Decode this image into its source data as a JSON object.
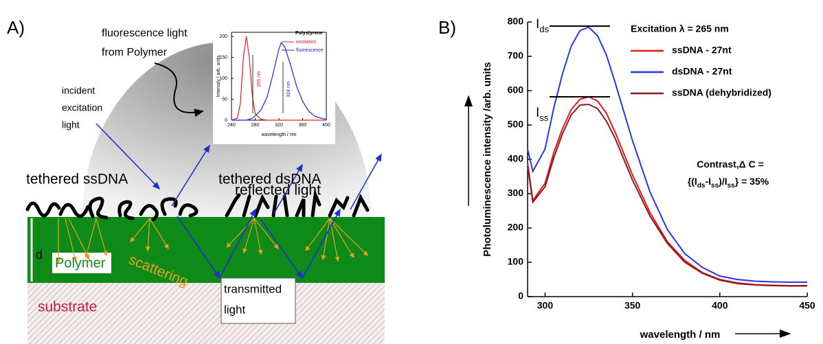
{
  "panel_a": {
    "label": "A)",
    "fluorescence_label": [
      "fluorescence light",
      "from Polymer"
    ],
    "incident_label": [
      "incident",
      "excitation",
      "light"
    ],
    "reflected_label": "reflected  light",
    "ssdna_label": "tethered ssDNA",
    "dsdna_label": "tethered  dsDNA",
    "thickness_label": "d",
    "polymer_label": "Polymer",
    "scattering_label": "scattering",
    "substrate_label": "substrate",
    "transmitted_label": [
      "transmitted",
      "light"
    ]
  },
  "panel_b_label": "B)",
  "chart_data": [
    {
      "type": "line",
      "title": "Polystyrene",
      "x": [
        240,
        250,
        255,
        260,
        265,
        270,
        275,
        280,
        290,
        300,
        310,
        320,
        324,
        330,
        340,
        350,
        360,
        370,
        380,
        390,
        400
      ],
      "series": [
        {
          "name": "excitation",
          "color": "#e02020",
          "values": [
            0,
            5,
            40,
            150,
            200,
            150,
            60,
            15,
            2,
            0,
            0,
            0,
            0,
            0,
            0,
            0,
            0,
            0,
            0,
            0,
            0
          ]
        },
        {
          "name": "fluorescence",
          "color": "#2020e0",
          "values": [
            0,
            0,
            0,
            0,
            0,
            2,
            5,
            10,
            25,
            55,
            110,
            170,
            185,
            175,
            130,
            80,
            45,
            22,
            10,
            5,
            2
          ]
        }
      ],
      "xlim": [
        240,
        400
      ],
      "ylim": [
        0,
        210
      ],
      "xticks": [
        240,
        280,
        320,
        360,
        400
      ],
      "yticks": [
        0,
        50,
        100,
        150,
        200
      ],
      "xlabel": "wavelength / nm",
      "ylabel": "Intensity / arb. units",
      "annotations": [
        "265 nm",
        "324 nm"
      ]
    },
    {
      "type": "line",
      "x": [
        290,
        293,
        300,
        305,
        310,
        315,
        320,
        325,
        330,
        335,
        340,
        350,
        360,
        370,
        380,
        390,
        400,
        410,
        420,
        430,
        440,
        450
      ],
      "series": [
        {
          "name": "ssDNA - 27nt",
          "color": "#e8141c",
          "values": [
            390,
            280,
            330,
            420,
            490,
            545,
            575,
            582,
            570,
            535,
            480,
            355,
            245,
            160,
            105,
            70,
            50,
            40,
            35,
            33,
            32,
            32
          ]
        },
        {
          "name": "dsDNA - 27nt",
          "color": "#2433f0",
          "values": [
            430,
            365,
            430,
            550,
            650,
            730,
            775,
            785,
            760,
            705,
            625,
            455,
            305,
            195,
            125,
            85,
            60,
            50,
            45,
            43,
            42,
            42
          ]
        },
        {
          "name": "ssDNA (dehybridized)",
          "color": "#8b1a1a",
          "values": [
            380,
            275,
            320,
            405,
            475,
            530,
            558,
            560,
            548,
            512,
            462,
            340,
            235,
            155,
            100,
            68,
            48,
            38,
            34,
            32,
            31,
            31
          ]
        }
      ],
      "legend_title": "Excitation λ = 265 nm",
      "xlim": [
        290,
        450
      ],
      "ylim": [
        0,
        800
      ],
      "xticks": [
        300,
        350,
        400,
        450
      ],
      "yticks": [
        0,
        100,
        200,
        300,
        400,
        500,
        600,
        700,
        800
      ],
      "xlabel": "wavelength / nm",
      "ylabel": "Photoluminescence intensity /arb. units",
      "annotations": {
        "ids": [
          "I",
          "ds"
        ],
        "iss": [
          "I",
          "ss"
        ],
        "contrast": [
          [
            "Contrast,Δ C ="
          ],
          [
            "{(I",
            "ds",
            "-I",
            "ss",
            ")/I",
            "ss",
            "} = 35%"
          ]
        ]
      }
    }
  ]
}
